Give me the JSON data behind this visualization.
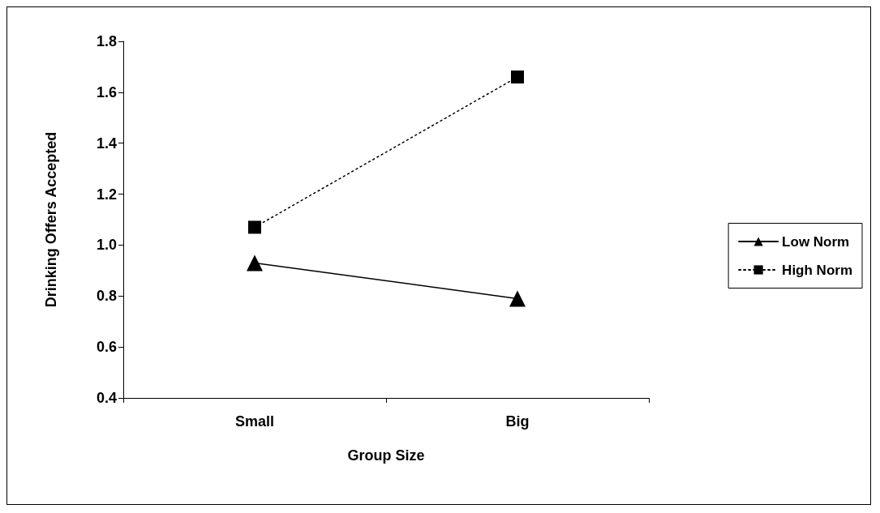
{
  "chart_data": {
    "type": "line",
    "xlabel": "Group Size",
    "ylabel": "Drinking Offers Accepted",
    "categories": [
      "Small",
      "Big"
    ],
    "series": [
      {
        "name": "Low Norm",
        "color": "#000000",
        "values": [
          0.93,
          0.79
        ],
        "marker": "triangle",
        "line_style": "solid"
      },
      {
        "name": "High Norm",
        "color": "#000000",
        "values": [
          1.07,
          1.66
        ],
        "marker": "square",
        "line_style": "dotted"
      }
    ],
    "ylim": [
      0.4,
      1.8
    ],
    "yticks": [
      {
        "value": 0.4,
        "label": "0.4"
      },
      {
        "value": 0.6,
        "label": "0.6"
      },
      {
        "value": 0.8,
        "label": "0.8"
      },
      {
        "value": 1,
        "label": "1.0"
      },
      {
        "value": 1.2,
        "label": "1.2"
      },
      {
        "value": 1.4,
        "label": "1.4"
      },
      {
        "value": 1.6,
        "label": "1.6"
      },
      {
        "value": 1.8,
        "label": "1.8"
      }
    ],
    "grid": false,
    "legend": "right"
  }
}
